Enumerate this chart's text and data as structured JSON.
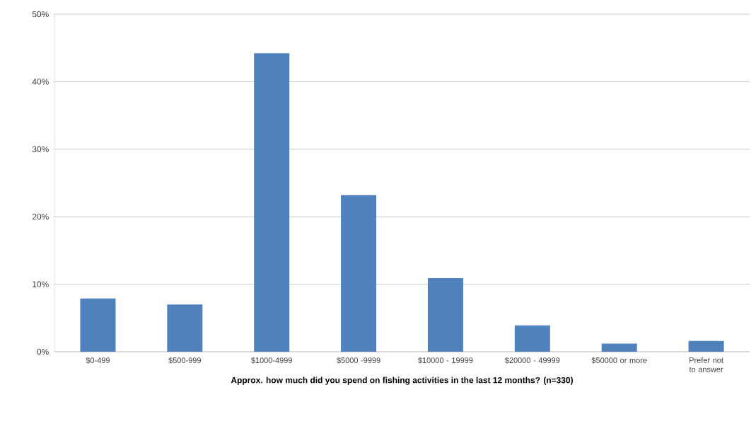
{
  "chart_data": {
    "type": "bar",
    "xlabel": "Approx. how much did you spend on fishing activities in the last 12 months? (n=330)",
    "categories": [
      "$0-499",
      "$500-999",
      "$1000-4999",
      "$5000 -9999",
      "$10000 - 19999",
      "$20000 - 49999",
      "$50000 or more",
      "Prefer not to answer"
    ],
    "values": [
      7.9,
      7.0,
      44.2,
      23.2,
      10.9,
      3.9,
      1.2,
      1.6
    ],
    "color": "#4f81bd",
    "ylim": [
      0,
      50
    ],
    "yticks": [
      {
        "value": 0,
        "label": "0%"
      },
      {
        "value": 10,
        "label": "10%"
      },
      {
        "value": 20,
        "label": "20%"
      },
      {
        "value": 30,
        "label": "30%"
      },
      {
        "value": 40,
        "label": "40%"
      },
      {
        "value": 50,
        "label": "50%"
      }
    ],
    "grid": "y",
    "legend": false
  }
}
